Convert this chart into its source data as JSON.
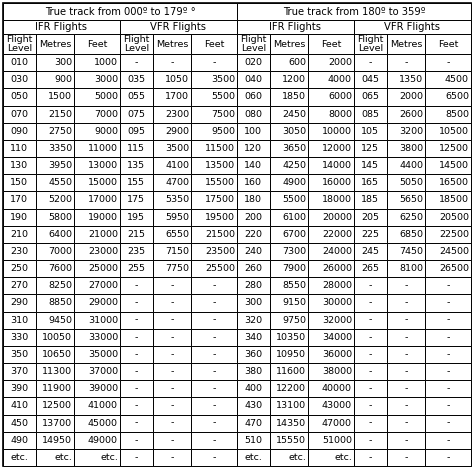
{
  "title_left": "True track from 000º to 179º °",
  "title_right": "True track from 180º to 359º",
  "header2_left_ifr": "IFR Flights",
  "header2_left_vfr": "VFR Flights",
  "header2_right_ifr": "IFR Flights",
  "header2_right_vfr": "VFR Flights",
  "rows": [
    [
      "010",
      "300",
      "1000",
      "-",
      "-",
      "-",
      "020",
      "600",
      "2000",
      "-",
      "-",
      "-"
    ],
    [
      "030",
      "900",
      "3000",
      "035",
      "1050",
      "3500",
      "040",
      "1200",
      "4000",
      "045",
      "1350",
      "4500"
    ],
    [
      "050",
      "1500",
      "5000",
      "055",
      "1700",
      "5500",
      "060",
      "1850",
      "6000",
      "065",
      "2000",
      "6500"
    ],
    [
      "070",
      "2150",
      "7000",
      "075",
      "2300",
      "7500",
      "080",
      "2450",
      "8000",
      "085",
      "2600",
      "8500"
    ],
    [
      "090",
      "2750",
      "9000",
      "095",
      "2900",
      "9500",
      "100",
      "3050",
      "10000",
      "105",
      "3200",
      "10500"
    ],
    [
      "110",
      "3350",
      "11000",
      "115",
      "3500",
      "11500",
      "120",
      "3650",
      "12000",
      "125",
      "3800",
      "12500"
    ],
    [
      "130",
      "3950",
      "13000",
      "135",
      "4100",
      "13500",
      "140",
      "4250",
      "14000",
      "145",
      "4400",
      "14500"
    ],
    [
      "150",
      "4550",
      "15000",
      "155",
      "4700",
      "15500",
      "160",
      "4900",
      "16000",
      "165",
      "5050",
      "16500"
    ],
    [
      "170",
      "5200",
      "17000",
      "175",
      "5350",
      "17500",
      "180",
      "5500",
      "18000",
      "185",
      "5650",
      "18500"
    ],
    [
      "190",
      "5800",
      "19000",
      "195",
      "5950",
      "19500",
      "200",
      "6100",
      "20000",
      "205",
      "6250",
      "20500"
    ],
    [
      "210",
      "6400",
      "21000",
      "215",
      "6550",
      "21500",
      "220",
      "6700",
      "22000",
      "225",
      "6850",
      "22500"
    ],
    [
      "230",
      "7000",
      "23000",
      "235",
      "7150",
      "23500",
      "240",
      "7300",
      "24000",
      "245",
      "7450",
      "24500"
    ],
    [
      "250",
      "7600",
      "25000",
      "255",
      "7750",
      "25500",
      "260",
      "7900",
      "26000",
      "265",
      "8100",
      "26500"
    ],
    [
      "270",
      "8250",
      "27000",
      "-",
      "-",
      "-",
      "280",
      "8550",
      "28000",
      "-",
      "-",
      "-"
    ],
    [
      "290",
      "8850",
      "29000",
      "-",
      "-",
      "-",
      "300",
      "9150",
      "30000",
      "-",
      "-",
      "-"
    ],
    [
      "310",
      "9450",
      "31000",
      "-",
      "-",
      "-",
      "320",
      "9750",
      "32000",
      "-",
      "-",
      "-"
    ],
    [
      "330",
      "10050",
      "33000",
      "-",
      "-",
      "-",
      "340",
      "10350",
      "34000",
      "-",
      "-",
      "-"
    ],
    [
      "350",
      "10650",
      "35000",
      "-",
      "-",
      "-",
      "360",
      "10950",
      "36000",
      "-",
      "-",
      "-"
    ],
    [
      "370",
      "11300",
      "37000",
      "-",
      "-",
      "-",
      "380",
      "11600",
      "38000",
      "-",
      "-",
      "-"
    ],
    [
      "390",
      "11900",
      "39000",
      "-",
      "-",
      "-",
      "400",
      "12200",
      "40000",
      "-",
      "-",
      "-"
    ],
    [
      "410",
      "12500",
      "41000",
      "-",
      "-",
      "-",
      "430",
      "13100",
      "43000",
      "-",
      "-",
      "-"
    ],
    [
      "450",
      "13700",
      "45000",
      "-",
      "-",
      "-",
      "470",
      "14350",
      "47000",
      "-",
      "-",
      "-"
    ],
    [
      "490",
      "14950",
      "49000",
      "-",
      "-",
      "-",
      "510",
      "15550",
      "51000",
      "-",
      "-",
      "-"
    ],
    [
      "etc.",
      "etc.",
      "etc.",
      "-",
      "-",
      "-",
      "etc.",
      "etc.",
      "etc.",
      "-",
      "-",
      "-"
    ]
  ],
  "bg_color": "#ffffff",
  "border_color": "#000000",
  "text_color": "#000000",
  "font_size": 6.8,
  "header_font_size": 7.2,
  "lw": 0.7
}
